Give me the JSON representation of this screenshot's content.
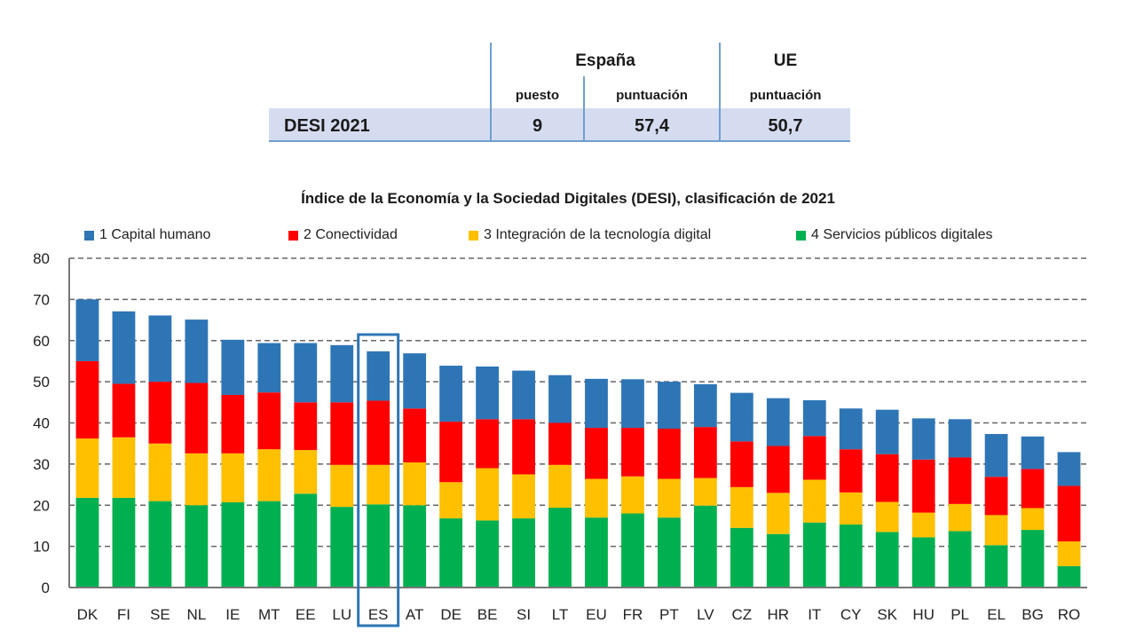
{
  "summary_table": {
    "columns": {
      "group_espana": "España",
      "group_ue": "UE",
      "puesto": "puesto",
      "puntuacion_es": "puntuación",
      "puntuacion_ue": "puntuación"
    },
    "row": {
      "label": "DESI 2021",
      "puesto": "9",
      "puntuacion_es": "57,4",
      "puntuacion_ue": "50,7"
    }
  },
  "chart_data": {
    "type": "bar",
    "stacked": true,
    "title": "Índice de la Economía y la Sociedad Digitales (DESI), clasificación de 2021",
    "xlabel": "",
    "ylabel": "",
    "ylim": [
      0,
      80
    ],
    "yticks": [
      0,
      10,
      20,
      30,
      40,
      50,
      60,
      70,
      80
    ],
    "grid": true,
    "legend_position": "top",
    "highlight_category": "ES",
    "categories": [
      "DK",
      "FI",
      "SE",
      "NL",
      "IE",
      "MT",
      "EE",
      "LU",
      "ES",
      "AT",
      "DE",
      "BE",
      "SI",
      "LT",
      "EU",
      "FR",
      "PT",
      "LV",
      "CZ",
      "HR",
      "IT",
      "CY",
      "SK",
      "HU",
      "PL",
      "EL",
      "BG",
      "RO"
    ],
    "series": [
      {
        "name": "4 Servicios públicos digitales",
        "color": "#00b050",
        "values": [
          21.8,
          21.8,
          21.0,
          20.0,
          20.7,
          21.0,
          22.8,
          19.6,
          20.2,
          20.0,
          16.8,
          16.3,
          16.8,
          19.4,
          17.0,
          18.0,
          17.0,
          19.9,
          14.5,
          13.0,
          15.8,
          15.3,
          13.5,
          12.2,
          13.7,
          10.3,
          14.0,
          5.2
        ]
      },
      {
        "name": "3 Integración de la tecnología digital",
        "color": "#ffc000",
        "values": [
          14.4,
          14.7,
          14.0,
          12.6,
          11.9,
          12.6,
          10.6,
          10.2,
          9.6,
          10.4,
          8.8,
          12.7,
          10.7,
          10.4,
          9.4,
          9.0,
          9.4,
          6.7,
          9.9,
          10.0,
          10.4,
          7.8,
          7.3,
          6.0,
          6.6,
          7.3,
          5.3,
          6.0
        ]
      },
      {
        "name": "2 Conectividad",
        "color": "#ff0000",
        "values": [
          18.8,
          13.0,
          15.0,
          17.1,
          14.2,
          13.8,
          11.6,
          15.2,
          15.6,
          13.1,
          14.7,
          11.9,
          13.4,
          10.2,
          12.4,
          11.8,
          12.2,
          12.4,
          11.1,
          11.4,
          10.6,
          10.5,
          11.6,
          12.9,
          11.3,
          9.3,
          9.5,
          13.5
        ]
      },
      {
        "name": "1 Capital humano",
        "color": "#2e75b6",
        "values": [
          15.0,
          17.6,
          16.1,
          15.4,
          13.4,
          12.0,
          14.4,
          13.9,
          12.0,
          13.4,
          13.6,
          12.8,
          11.8,
          11.6,
          11.9,
          11.8,
          11.4,
          10.4,
          11.8,
          11.6,
          8.7,
          9.9,
          10.8,
          10.0,
          9.3,
          10.4,
          7.9,
          8.2
        ]
      }
    ],
    "legend": [
      {
        "label": "1 Capital humano",
        "color": "#2e75b6"
      },
      {
        "label": "2 Conectividad",
        "color": "#ff0000"
      },
      {
        "label": "3 Integración de la tecnología digital",
        "color": "#ffc000"
      },
      {
        "label": "4 Servicios públicos digitales",
        "color": "#00b050"
      }
    ]
  }
}
